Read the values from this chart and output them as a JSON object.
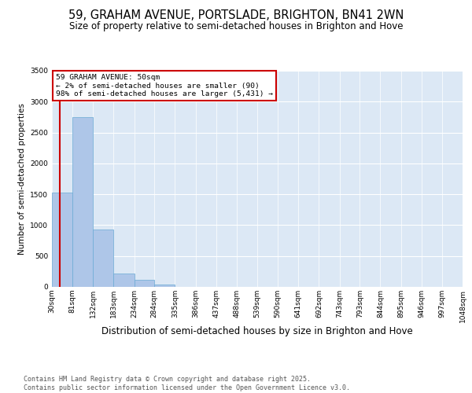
{
  "title": "59, GRAHAM AVENUE, PORTSLADE, BRIGHTON, BN41 2WN",
  "subtitle": "Size of property relative to semi-detached houses in Brighton and Hove",
  "xlabel": "Distribution of semi-detached houses by size in Brighton and Hove",
  "ylabel": "Number of semi-detached properties",
  "bar_values": [
    1530,
    2750,
    930,
    220,
    110,
    40,
    5,
    0,
    0,
    0,
    0,
    0,
    0,
    0,
    0,
    0,
    0,
    0,
    0,
    0
  ],
  "bin_edges": [
    30,
    81,
    132,
    183,
    234,
    284,
    335,
    386,
    437,
    488,
    539,
    590,
    641,
    692,
    743,
    793,
    844,
    895,
    946,
    997,
    1048
  ],
  "tick_labels": [
    "30sqm",
    "81sqm",
    "132sqm",
    "183sqm",
    "234sqm",
    "284sqm",
    "335sqm",
    "386sqm",
    "437sqm",
    "488sqm",
    "539sqm",
    "590sqm",
    "641sqm",
    "692sqm",
    "743sqm",
    "793sqm",
    "844sqm",
    "895sqm",
    "946sqm",
    "997sqm",
    "1048sqm"
  ],
  "bar_color": "#aec6e8",
  "bar_edge_color": "#6aaad4",
  "vline_x": 50,
  "vline_color": "#cc0000",
  "annotation_title": "59 GRAHAM AVENUE: 50sqm",
  "annotation_line1": "← 2% of semi-detached houses are smaller (90)",
  "annotation_line2": "98% of semi-detached houses are larger (5,431) →",
  "annotation_box_color": "#cc0000",
  "ylim": [
    0,
    3500
  ],
  "yticks": [
    0,
    500,
    1000,
    1500,
    2000,
    2500,
    3000,
    3500
  ],
  "background_color": "#dce8f5",
  "footer": "Contains HM Land Registry data © Crown copyright and database right 2025.\nContains public sector information licensed under the Open Government Licence v3.0.",
  "title_fontsize": 10.5,
  "subtitle_fontsize": 8.5,
  "xlabel_fontsize": 8.5,
  "ylabel_fontsize": 7.5,
  "tick_fontsize": 6.5,
  "footer_fontsize": 6.0
}
